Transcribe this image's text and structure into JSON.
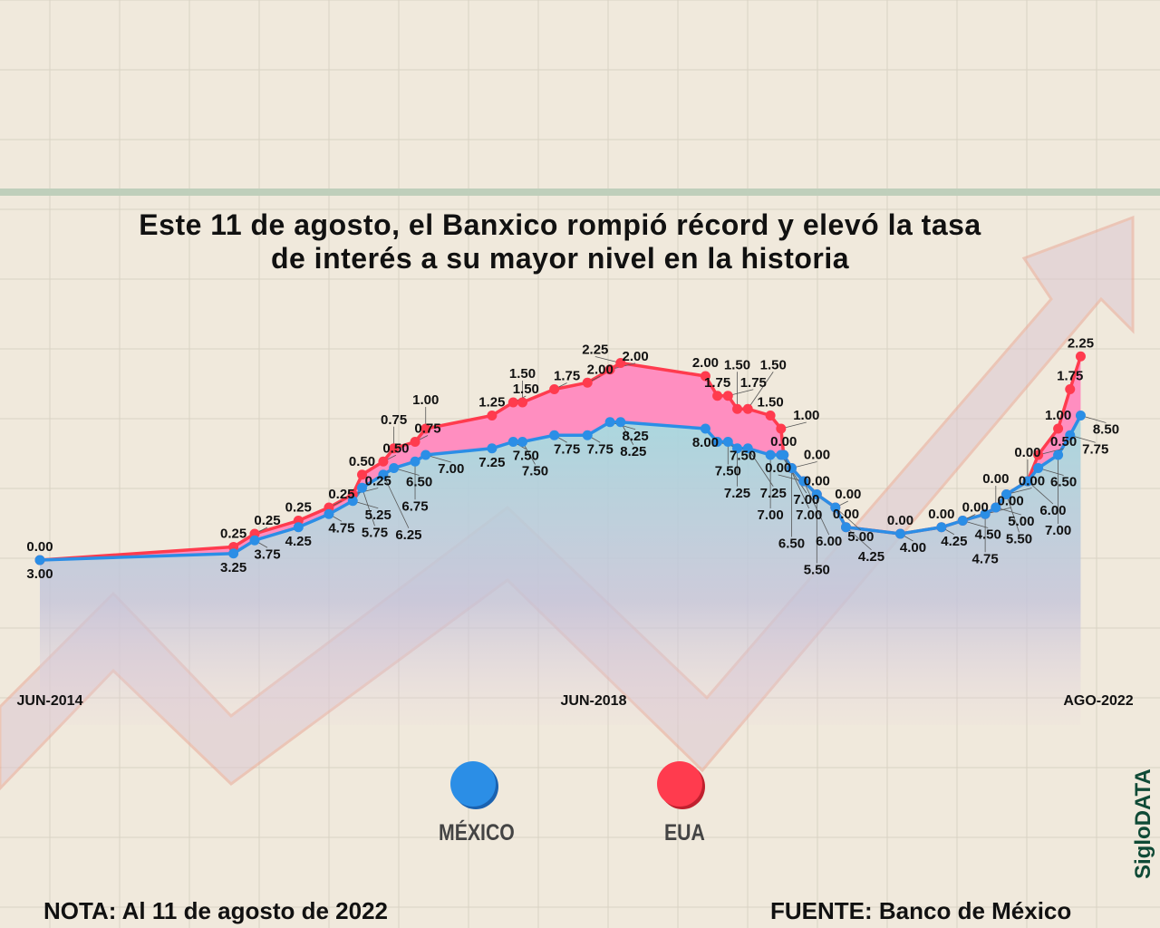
{
  "title_line1": "Este 11 de agosto, el Banxico rompió récord y elevó la tasa",
  "title_line2": "de interés a su mayor nivel en la historia",
  "legend": [
    {
      "label": "MÉXICO",
      "color": "#2b8ee6"
    },
    {
      "label": "EUA",
      "color": "#ff3b4e"
    }
  ],
  "note": "NOTA: Al 11 de agosto de 2022",
  "source": "FUENTE: Banco de México",
  "brand": "SigloDATA",
  "chart_data": {
    "type": "area",
    "title": "Este 11 de agosto, el Banxico rompió récord y elevó la tasa de interés a su mayor nivel en la historia",
    "x_tick_labels": [
      "JUN-2014",
      "JUN-2018",
      "AGO-2022"
    ],
    "legend_position": "bottom-center",
    "grid": true,
    "series": [
      {
        "name": "MÉXICO",
        "color": "#2b8ee6",
        "values": [
          3.0,
          3.25,
          3.75,
          4.25,
          4.75,
          5.25,
          5.75,
          6.25,
          6.5,
          6.75,
          7.0,
          7.25,
          7.5,
          7.5,
          7.75,
          7.75,
          8.25,
          8.25,
          8.0,
          7.5,
          7.5,
          7.25,
          7.25,
          7.0,
          7.0,
          7.0,
          6.5,
          6.0,
          5.5,
          5.0,
          4.25,
          4.0,
          4.25,
          4.5,
          4.75,
          5.0,
          5.5,
          6.0,
          6.5,
          7.0,
          7.75,
          8.5
        ]
      },
      {
        "name": "EUA",
        "color": "#ff3b4e",
        "values": [
          0.0,
          0.25,
          0.25,
          0.25,
          0.25,
          0.25,
          0.5,
          0.5,
          0.75,
          0.75,
          1.0,
          1.25,
          1.5,
          1.5,
          1.75,
          2.0,
          2.0,
          2.25,
          2.0,
          1.75,
          1.75,
          1.5,
          1.5,
          1.5,
          1.0,
          0.0,
          0.0,
          0.0,
          0.0,
          0.0,
          0.0,
          0.0,
          0.0,
          0.0,
          0.0,
          0.0,
          0.0,
          0.0,
          0.5,
          1.0,
          1.75,
          2.25
        ]
      }
    ],
    "x": [
      2014.5,
      2015.96,
      2016.12,
      2016.45,
      2016.68,
      2016.86,
      2016.93,
      2017.09,
      2017.17,
      2017.33,
      2017.41,
      2017.91,
      2018.07,
      2018.14,
      2018.38,
      2018.63,
      2018.8,
      2018.88,
      2019.52,
      2019.61,
      2019.69,
      2019.76,
      2019.84,
      2020.01,
      2020.09,
      2020.11,
      2020.17,
      2020.26,
      2020.36,
      2020.5,
      2020.58,
      2020.99,
      2021.3,
      2021.46,
      2021.63,
      2021.71,
      2021.79,
      2021.95,
      2022.03,
      2022.18,
      2022.27,
      2022.35
    ]
  }
}
